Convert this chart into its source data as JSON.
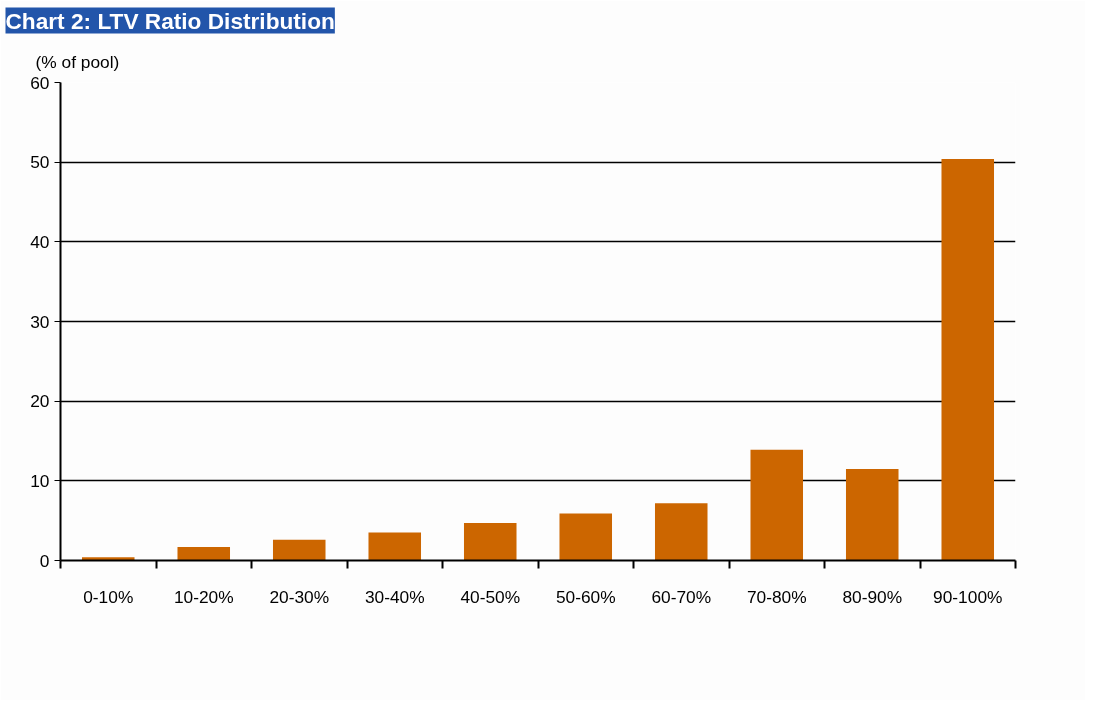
{
  "chart_data": {
    "type": "bar",
    "title": "Chart 2: LTV Ratio Distribution",
    "ylabel": "(% of pool)",
    "categories": [
      "0-10%",
      "10-20%",
      "20-30%",
      "30-40%",
      "40-50%",
      "50-60%",
      "60-70%",
      "70-80%",
      "80-90%",
      "90-100%"
    ],
    "values": [
      0.4,
      1.7,
      2.6,
      3.5,
      4.7,
      5.9,
      7.2,
      13.9,
      11.5,
      50.4
    ],
    "color": "#cc6600",
    "ylim": [
      0,
      60
    ],
    "yticks": [
      0,
      10,
      20,
      30,
      40,
      50,
      60
    ],
    "grid": "y"
  }
}
